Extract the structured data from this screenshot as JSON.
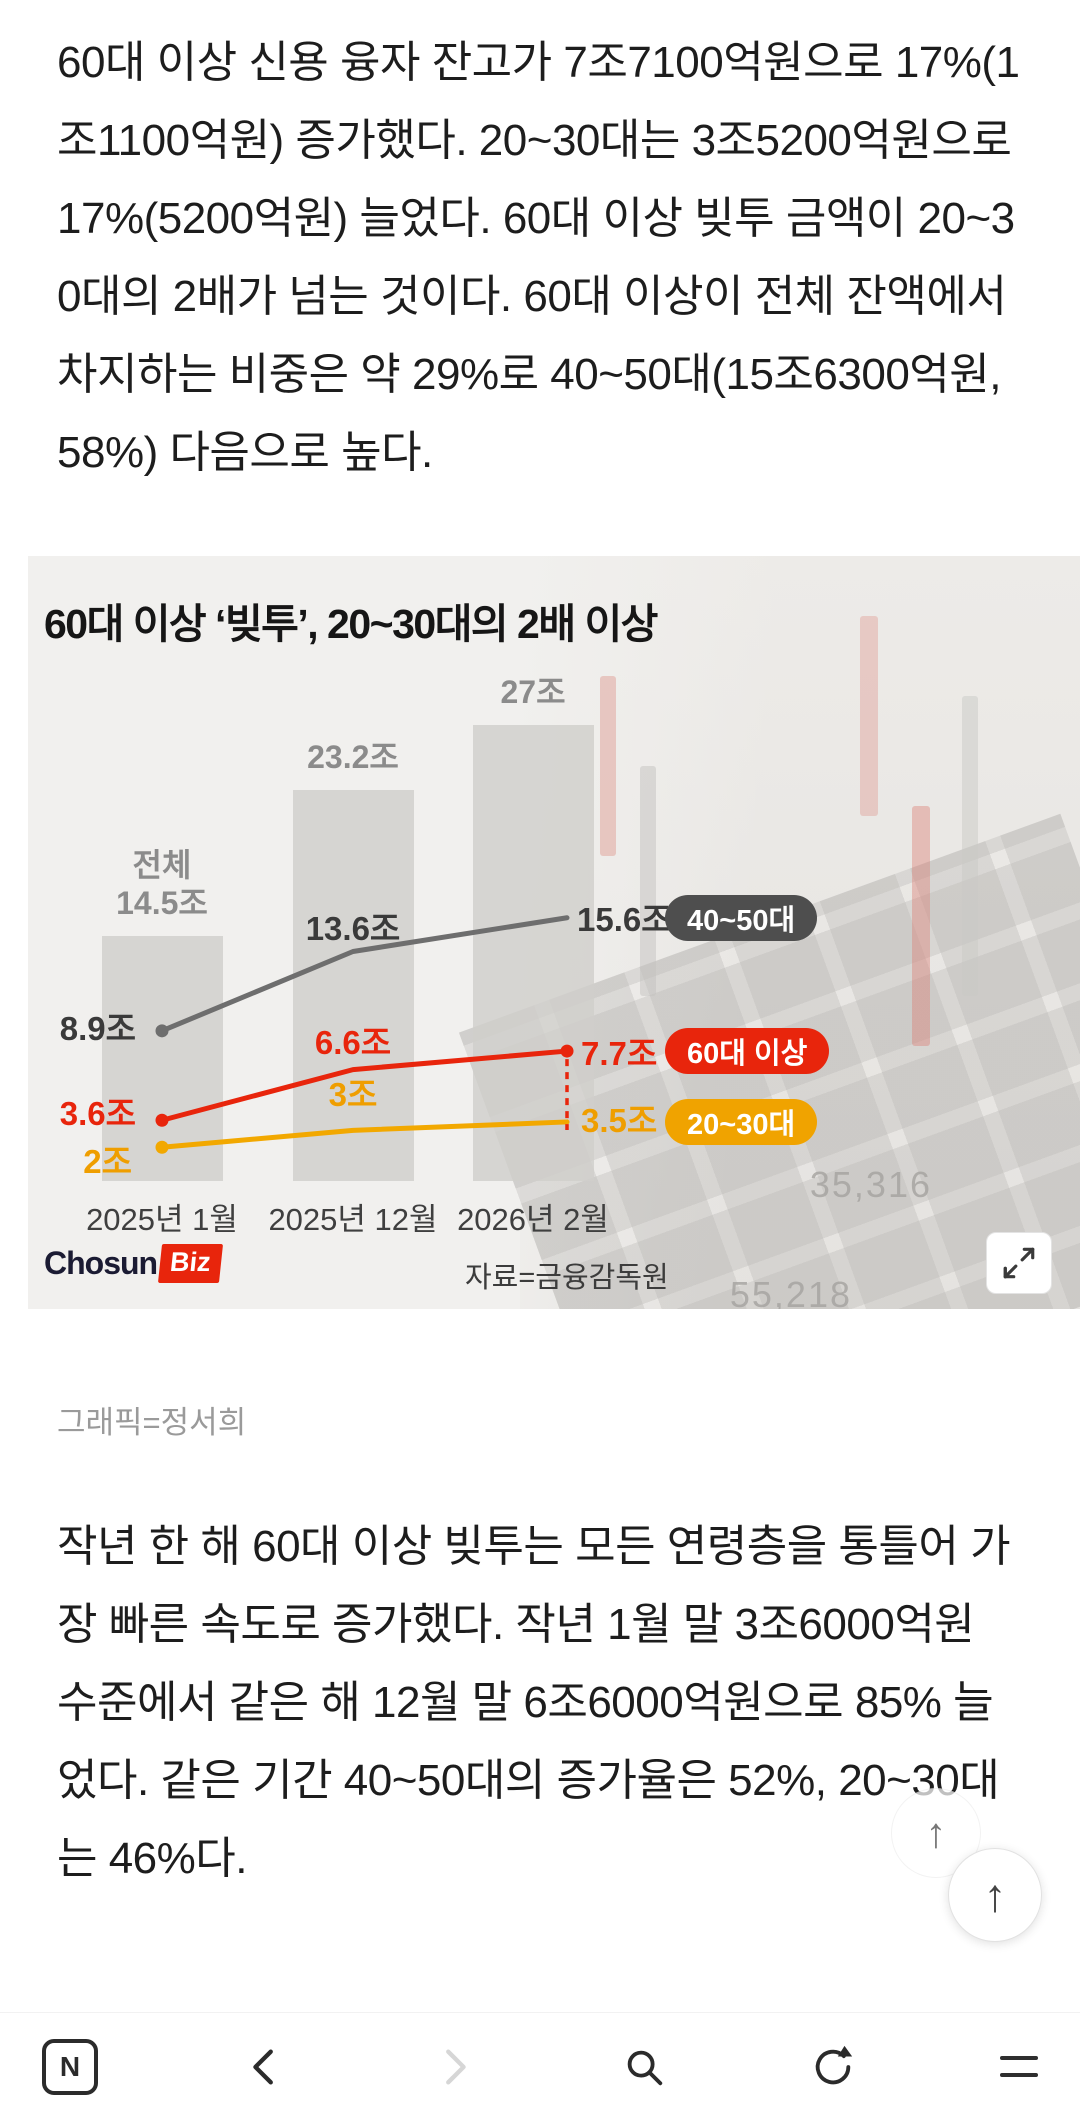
{
  "article": {
    "paragraph1": "60대 이상 신용 융자 잔고가 7조7100억원으로 17%(1조1100억원) 증가했다. 20~30대는 3조5200억원으로 17%(5200억원) 늘었다. 60대 이상 빚투 금액이 20~30대의 2배가 넘는 것이다. 60대 이상이 전체 잔액에서 차지하는 비중은 약 29%로 40~50대(15조6300억원, 58%) 다음으로 높다.",
    "image_caption": "그래픽=정서희",
    "paragraph2": "작년 한 해 60대 이상 빚투는 모든 연령층을 통틀어 가장 빠른 속도로 증가했다. 작년 1월 말 3조6000억원 수준에서 같은 해 12월 말 6조6000억원으로 85% 늘었다. 같은 기간 40~50대의 증가율은 52%, 20~30대는 46%다."
  },
  "chart": {
    "logo": {
      "part1": "Chosun",
      "part2": "Biz"
    },
    "source": "자료=금융감독원",
    "background_numbers": [
      "35,316",
      "55,218"
    ]
  },
  "chart_data": {
    "type": "bar+line",
    "title": "60대 이상 ‘빚투’, 20~30대의 2배 이상",
    "categories": [
      "2025년 1월",
      "2025년 12월",
      "2026년 2월"
    ],
    "unit": "조",
    "ylim": [
      0,
      30
    ],
    "grid": false,
    "legend_position": "right",
    "bars": {
      "name": "전체",
      "first_prefix": "전체",
      "values": [
        14.5,
        23.2,
        27
      ],
      "labels": [
        "14.5조",
        "23.2조",
        "27조"
      ],
      "color": "#d0cecb"
    },
    "series": [
      {
        "name": "40~50대",
        "values": [
          8.9,
          13.6,
          15.6
        ],
        "labels": [
          "8.9조",
          "13.6조",
          "15.6조"
        ],
        "line_color": "#6e6e6e",
        "label_color": "#3a3a3a",
        "badge_color": "#4e4e4e"
      },
      {
        "name": "60대 이상",
        "values": [
          3.6,
          6.6,
          7.7
        ],
        "labels": [
          "3.6조",
          "6.6조",
          "7.7조"
        ],
        "line_color": "#e8250c",
        "label_color": "#e8250c",
        "badge_color": "#e8250c"
      },
      {
        "name": "20~30대",
        "values": [
          2,
          3,
          3.5
        ],
        "labels": [
          "2조",
          "3조",
          "3.5조"
        ],
        "line_color": "#f2a800",
        "label_color": "#ef9e00",
        "badge_color": "#f0a300"
      }
    ]
  },
  "icons": {
    "scroll_top": "↑"
  },
  "toolbar": {
    "buttons": [
      {
        "name": "naver-home",
        "icon": "naver-n-icon",
        "label": "N"
      },
      {
        "name": "back",
        "icon": "chevron-left-icon"
      },
      {
        "name": "forward",
        "icon": "chevron-right-icon"
      },
      {
        "name": "search",
        "icon": "search-icon"
      },
      {
        "name": "refresh",
        "icon": "refresh-icon"
      },
      {
        "name": "menu",
        "icon": "menu-icon"
      }
    ]
  }
}
